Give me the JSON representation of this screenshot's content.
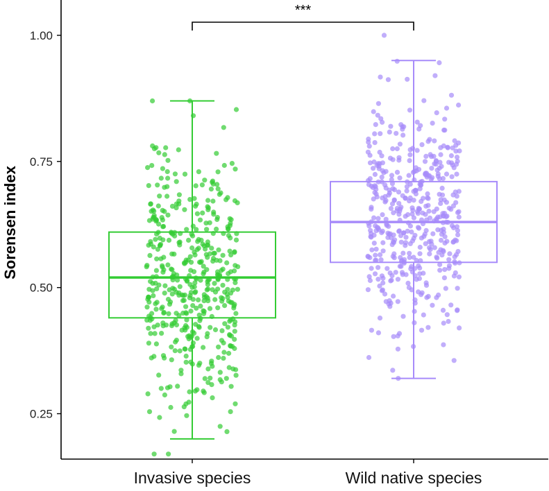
{
  "chart_data": {
    "type": "boxplot",
    "title": "",
    "xlabel": "",
    "ylabel": "Sorensen index",
    "categories": [
      "Invasive species",
      "Wild native species"
    ],
    "ylim": [
      0.16,
      1.07
    ],
    "yticks": [
      0.25,
      0.5,
      0.75,
      1.0
    ],
    "ytick_labels": [
      "0.25",
      "0.50",
      "0.75",
      "1.00"
    ],
    "grid": false,
    "legend": "none",
    "series": [
      {
        "category": "Invasive species",
        "color": "#33cc33",
        "stats": {
          "whisker_low": 0.2,
          "q1": 0.44,
          "median": 0.52,
          "q3": 0.61,
          "whisker_high": 0.87
        },
        "points_range": [
          0.17,
          0.87
        ]
      },
      {
        "category": "Wild native species",
        "color": "#a78bfa",
        "stats": {
          "whisker_low": 0.32,
          "q1": 0.55,
          "median": 0.63,
          "q3": 0.71,
          "whisker_high": 0.95
        },
        "points_range": [
          0.32,
          1.0
        ]
      }
    ],
    "annotations": [
      {
        "type": "significance_bracket",
        "between": [
          "Invasive species",
          "Wild native species"
        ],
        "label": "***"
      }
    ]
  }
}
